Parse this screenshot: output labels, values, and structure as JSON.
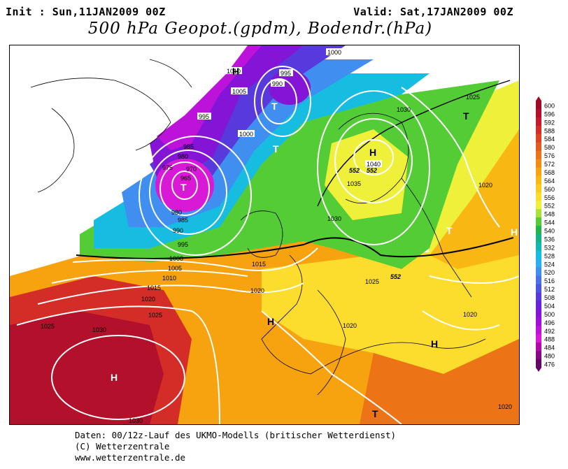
{
  "header": {
    "init": "Init : Sun,11JAN2009 00Z",
    "valid": "Valid: Sat,17JAN2009 00Z",
    "title": "500 hPa Geopot.(gpdm), Bodendr.(hPa)"
  },
  "footer": {
    "line1": "Daten: 00/12z-Lauf des UKMO-Modells (britischer Wetterdienst)",
    "line2": "(C) Wetterzentrale",
    "line3": "www.wetterzentrale.de"
  },
  "legend": {
    "levels": [
      "600",
      "596",
      "592",
      "588",
      "584",
      "580",
      "576",
      "572",
      "568",
      "564",
      "560",
      "556",
      "552",
      "548",
      "544",
      "540",
      "536",
      "532",
      "528",
      "524",
      "520",
      "516",
      "512",
      "508",
      "504",
      "500",
      "496",
      "492",
      "488",
      "484",
      "480",
      "476"
    ],
    "colors": [
      "#9e0c26",
      "#b3112b",
      "#c61a2c",
      "#d42d27",
      "#dd4522",
      "#e55b1d",
      "#ec7417",
      "#f28b12",
      "#f7a20f",
      "#f9b714",
      "#fbca1e",
      "#fcdc2c",
      "#eff03a",
      "#a7e23b",
      "#53cc36",
      "#23b64e",
      "#14b389",
      "#12b8b6",
      "#16bde0",
      "#2aaef2",
      "#3f8ef0",
      "#4a70ea",
      "#4d55e3",
      "#5839dc",
      "#6c22d8",
      "#8414d6",
      "#a010d8",
      "#bd12d9",
      "#d81ad6",
      "#b20aa8",
      "#8a0784",
      "#640666"
    ]
  },
  "map": {
    "pressure_labels": [
      "1000",
      "1010",
      "995",
      "990",
      "1005",
      "1000",
      "995",
      "985",
      "980",
      "975",
      "970",
      "965",
      "980",
      "985",
      "990",
      "995",
      "1000",
      "1005",
      "1010",
      "1015",
      "1020",
      "1025",
      "1030",
      "1040",
      "1035",
      "1030",
      "1025",
      "1020",
      "1015",
      "1020",
      "1025",
      "1020",
      "1020",
      "1025",
      "1030",
      "1030",
      "1020"
    ],
    "height_labels": [
      "552",
      "552",
      "552"
    ],
    "centers_low": [
      "T",
      "T",
      "T",
      "T",
      "T",
      "T"
    ],
    "centers_high": [
      "H",
      "H",
      "H",
      "H",
      "H",
      "H"
    ]
  }
}
